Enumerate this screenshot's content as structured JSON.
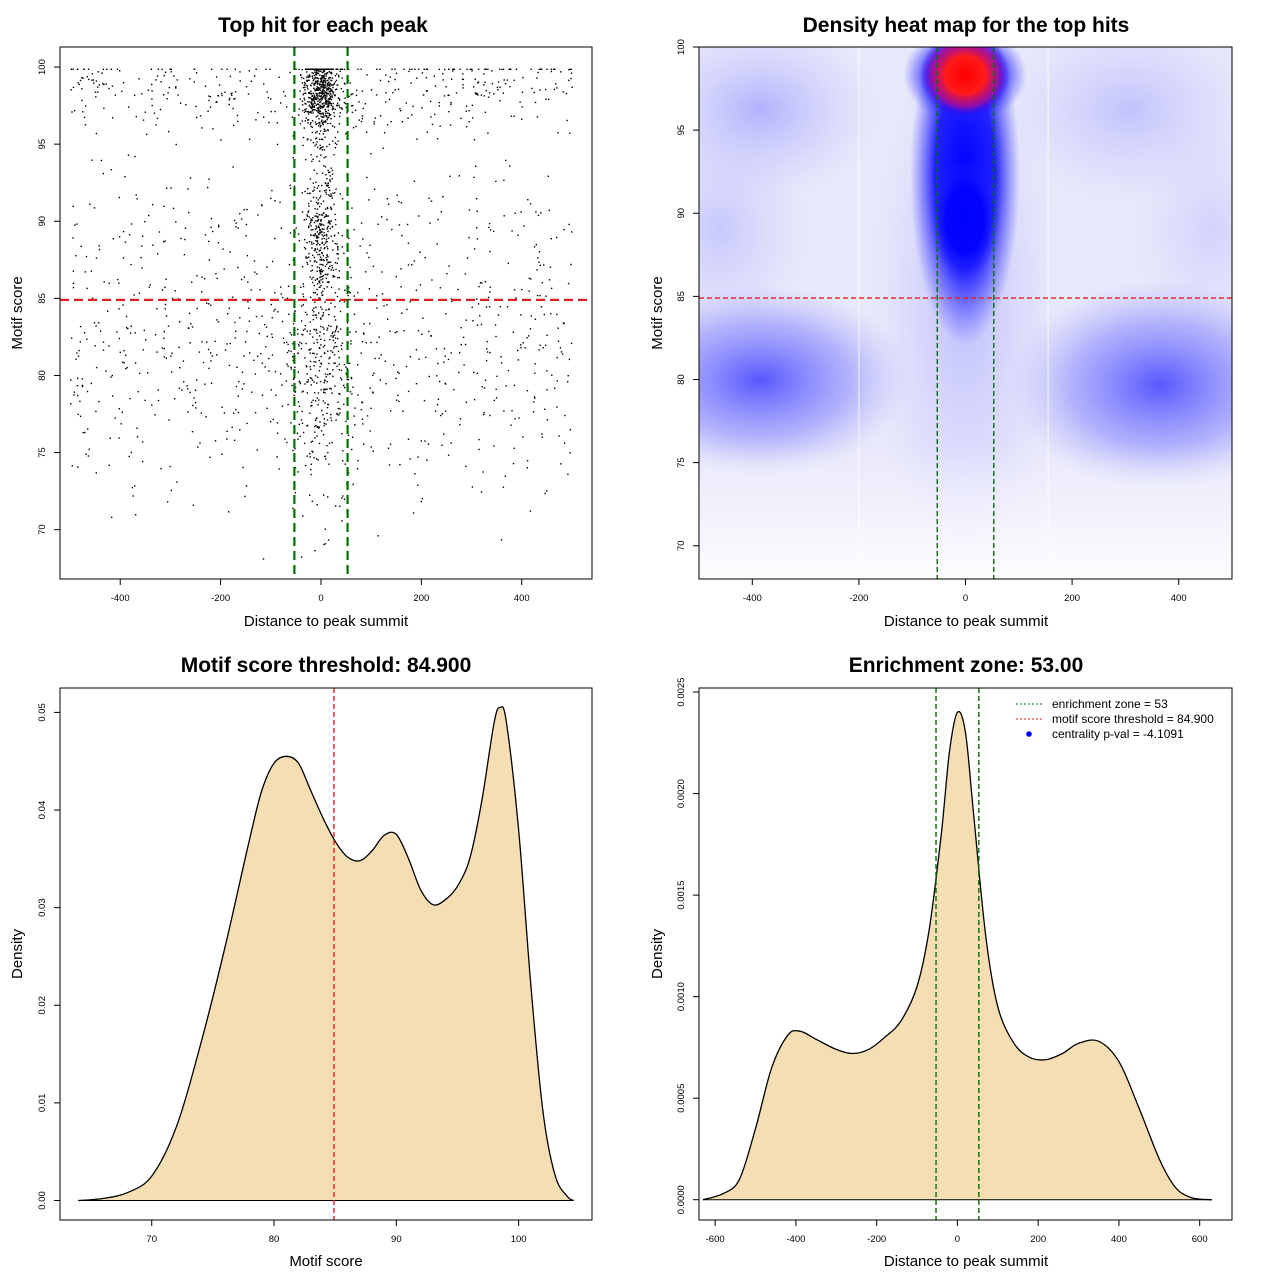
{
  "chart_data": [
    {
      "id": "scatter",
      "type": "scatter",
      "title": "Top hit for each peak",
      "xlabel": "Distance to peak summit",
      "ylabel": "Motif score",
      "xlim": [
        -520,
        540
      ],
      "ylim": [
        66.8,
        101.3
      ],
      "xticks": [
        -400,
        -200,
        0,
        200,
        400
      ],
      "yticks": [
        70,
        75,
        80,
        85,
        90,
        95,
        100
      ],
      "point_color": "#000000",
      "points_approx": 2600,
      "point_density_model": {
        "score_modes": [
          {
            "center": 81,
            "sd": 4.5,
            "weight": 0.42
          },
          {
            "center": 89.5,
            "sd": 2.5,
            "weight": 0.18
          },
          {
            "center": 98.5,
            "sd": 1.5,
            "weight": 0.4
          }
        ],
        "distance_range": [
          -500,
          500
        ],
        "central_fraction": 0.35
      },
      "hlines": [
        {
          "y": 84.9,
          "color": "#e02020",
          "style": "dashed"
        }
      ],
      "vlines": [
        {
          "x": -53,
          "color": "#007000",
          "style": "dashed"
        },
        {
          "x": 53,
          "color": "#007000",
          "style": "dashed"
        }
      ]
    },
    {
      "id": "heatmap",
      "type": "heatmap",
      "title": "Density heat map for the top hits",
      "xlabel": "Distance to peak summit",
      "ylabel": "Motif score",
      "xlim": [
        -500,
        500
      ],
      "ylim": [
        68,
        100
      ],
      "xticks": [
        -400,
        -200,
        0,
        200,
        400
      ],
      "yticks": [
        70,
        75,
        80,
        85,
        90,
        95,
        100
      ],
      "colors": [
        "#ffffff",
        "#0000ff",
        "#ff0000"
      ],
      "hot_spot": {
        "x": 5,
        "y": 98.5
      },
      "hlines": [
        {
          "y": 84.9,
          "color": "#e02020",
          "style": "dashed"
        }
      ],
      "vlines": [
        {
          "x": -53,
          "color": "#007000",
          "style": "dashed"
        },
        {
          "x": 53,
          "color": "#007000",
          "style": "dashed"
        }
      ],
      "grid_lines_x": [
        -200,
        155
      ]
    },
    {
      "id": "score_density",
      "type": "area",
      "title": "Motif score threshold: 84.900",
      "xlabel": "Motif score",
      "ylabel": "Density",
      "xlim": [
        62.5,
        106
      ],
      "ylim": [
        -0.002,
        0.0525
      ],
      "xticks": [
        70,
        80,
        90,
        100
      ],
      "yticks": [
        0.0,
        0.01,
        0.02,
        0.03,
        0.04,
        0.05
      ],
      "ytick_labels": [
        "0.00",
        "0.01",
        "0.02",
        "0.03",
        "0.04",
        "0.05"
      ],
      "fill_color": "#f5deb3",
      "line_color": "#000000",
      "x": [
        64,
        66,
        68,
        70,
        72,
        74,
        76,
        78,
        79,
        80,
        81,
        82,
        83,
        84,
        85,
        86,
        87,
        88,
        89,
        90,
        91,
        92,
        93,
        94,
        95,
        96,
        97,
        98,
        98.5,
        99,
        100,
        101,
        102,
        103,
        104,
        104.5
      ],
      "y": [
        0.0,
        0.0002,
        0.0008,
        0.0025,
        0.0075,
        0.016,
        0.026,
        0.037,
        0.042,
        0.0448,
        0.0455,
        0.0448,
        0.042,
        0.0392,
        0.0368,
        0.0352,
        0.0348,
        0.0358,
        0.0374,
        0.0375,
        0.035,
        0.0318,
        0.0303,
        0.0308,
        0.0322,
        0.035,
        0.041,
        0.049,
        0.0505,
        0.049,
        0.038,
        0.022,
        0.009,
        0.0025,
        0.0004,
        0.0
      ],
      "vlines": [
        {
          "x": 84.9,
          "color": "#e02020",
          "style": "dashed"
        }
      ]
    },
    {
      "id": "distance_density",
      "type": "area",
      "title": "Enrichment zone: 53.00",
      "xlabel": "Distance to peak summit",
      "ylabel": "Density",
      "xlim": [
        -640,
        680
      ],
      "ylim": [
        -0.0001,
        0.00252
      ],
      "xticks": [
        -600,
        -400,
        -200,
        0,
        200,
        400,
        600
      ],
      "yticks": [
        0.0,
        0.0005,
        0.001,
        0.0015,
        0.002,
        0.0025
      ],
      "ytick_labels": [
        "0.0000",
        "0.0005",
        "0.0010",
        "0.0015",
        "0.0020",
        "0.0025"
      ],
      "fill_color": "#f5deb3",
      "line_color": "#000000",
      "x": [
        -630,
        -580,
        -540,
        -500,
        -460,
        -420,
        -390,
        -350,
        -300,
        -260,
        -220,
        -180,
        -140,
        -100,
        -70,
        -40,
        -20,
        0,
        20,
        40,
        70,
        100,
        140,
        180,
        220,
        260,
        300,
        350,
        400,
        450,
        500,
        540,
        580,
        630
      ],
      "y": [
        0.0,
        3e-05,
        0.0001,
        0.00035,
        0.00065,
        0.00081,
        0.00083,
        0.00079,
        0.00074,
        0.00072,
        0.00074,
        0.0008,
        0.00088,
        0.00105,
        0.00133,
        0.0018,
        0.0022,
        0.0024,
        0.0023,
        0.0019,
        0.0013,
        0.00095,
        0.00077,
        0.0007,
        0.00069,
        0.00072,
        0.00077,
        0.00078,
        0.00068,
        0.00045,
        0.0002,
        6e-05,
        1e-05,
        0.0
      ],
      "vlines": [
        {
          "x": -53,
          "color": "#007000",
          "style": "dashed"
        },
        {
          "x": 53,
          "color": "#007000",
          "style": "dashed"
        }
      ],
      "legend": {
        "position": "top-right",
        "entries": [
          {
            "label": "enrichment zone = 53",
            "color": "#007000",
            "style": "dotted-line"
          },
          {
            "label": "motif score threshold = 84.900",
            "color": "#e02020",
            "style": "dotted-line"
          },
          {
            "label": "centrality p-val = -4.1091",
            "color": "#0000ff",
            "style": "point"
          }
        ]
      }
    }
  ]
}
